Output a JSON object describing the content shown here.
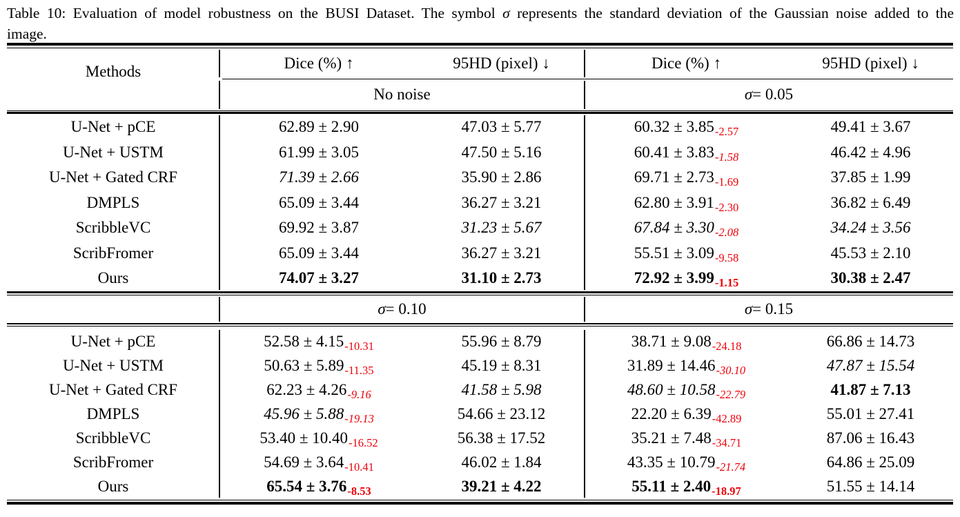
{
  "caption": {
    "part1": "Table 10: Evaluation of model robustness on the BUSI Dataset. The symbol ",
    "sigma": "σ",
    "part2": " represents the standard deviation of the Gaussian noise added to the",
    "line2": "image."
  },
  "colors": {
    "drop_red": "#ee0009",
    "text": "#000000",
    "background": "#ffffff"
  },
  "header": {
    "methods": "Methods",
    "dice": "Dice (%) ↑",
    "hd": "95HD (pixel) ↓"
  },
  "conditions": {
    "no_noise": "No noise",
    "s005": {
      "sigma": "σ",
      "rest": " = 0.05"
    },
    "s010": {
      "sigma": "σ",
      "rest": " = 0.10"
    },
    "s015": {
      "sigma": "σ",
      "rest": " = 0.15"
    }
  },
  "block1": {
    "rows": [
      {
        "method": "U-Net + pCE",
        "cells": [
          {
            "text": "62.89 ± 2.90"
          },
          {
            "text": "47.03 ± 5.77"
          },
          {
            "text": "60.32 ± 3.85",
            "sub": "-2.57"
          },
          {
            "text": "49.41 ± 3.67"
          }
        ]
      },
      {
        "method": "U-Net + USTM",
        "cells": [
          {
            "text": "61.99 ± 3.05"
          },
          {
            "text": "47.50 ± 5.16"
          },
          {
            "text": "60.41 ± 3.83",
            "sub": "-1.58",
            "sub_style": "italic"
          },
          {
            "text": "46.42 ± 4.96"
          }
        ]
      },
      {
        "method": "U-Net + Gated CRF",
        "cells": [
          {
            "text": "71.39 ± 2.66",
            "style": "italic"
          },
          {
            "text": "35.90 ± 2.86"
          },
          {
            "text": "69.71 ± 2.73",
            "sub": "-1.69"
          },
          {
            "text": "37.85 ± 1.99"
          }
        ]
      },
      {
        "method": "DMPLS",
        "cells": [
          {
            "text": "65.09 ± 3.44"
          },
          {
            "text": "36.27 ± 3.21"
          },
          {
            "text": "62.80 ± 3.91",
            "sub": "-2.30"
          },
          {
            "text": "36.82 ± 6.49"
          }
        ]
      },
      {
        "method": "ScribbleVC",
        "cells": [
          {
            "text": "69.92 ± 3.87"
          },
          {
            "text": "31.23 ± 5.67",
            "style": "italic"
          },
          {
            "text": "67.84 ± 3.30",
            "style": "italic",
            "sub": "-2.08"
          },
          {
            "text": "34.24 ± 3.56",
            "style": "italic"
          }
        ]
      },
      {
        "method": "ScribFromer",
        "cells": [
          {
            "text": "65.09 ± 3.44"
          },
          {
            "text": "36.27 ± 3.21"
          },
          {
            "text": "55.51 ± 3.09",
            "sub": "-9.58"
          },
          {
            "text": "45.53 ± 2.10"
          }
        ]
      },
      {
        "method": "Ours",
        "cells": [
          {
            "text": "74.07 ± 3.27",
            "style": "bold"
          },
          {
            "text": "31.10 ± 2.73",
            "style": "bold"
          },
          {
            "text": "72.92 ± 3.99",
            "style": "bold",
            "sub": "-1.15",
            "sub_style": "bold"
          },
          {
            "text": "30.38 ± 2.47",
            "style": "bold"
          }
        ]
      }
    ]
  },
  "block2": {
    "rows": [
      {
        "method": "U-Net + pCE",
        "cells": [
          {
            "text": "52.58 ± 4.15",
            "sub": "-10.31"
          },
          {
            "text": "55.96 ± 8.79"
          },
          {
            "text": "38.71 ± 9.08",
            "sub": "-24.18"
          },
          {
            "text": "66.86 ± 14.73"
          }
        ]
      },
      {
        "method": "U-Net + USTM",
        "cells": [
          {
            "text": "50.63 ± 5.89",
            "sub": "-11.35"
          },
          {
            "text": "45.19 ± 8.31"
          },
          {
            "text": "31.89 ± 14.46",
            "sub": "-30.10",
            "sub_style": "italic"
          },
          {
            "text": "47.87 ± 15.54",
            "style": "italic"
          }
        ]
      },
      {
        "method": "U-Net + Gated CRF",
        "cells": [
          {
            "text": "62.23 ± 4.26",
            "sub": "-9.16",
            "sub_style": "italic"
          },
          {
            "text": "41.58 ± 5.98",
            "style": "italic"
          },
          {
            "text": "48.60 ± 10.58",
            "style": "italic",
            "sub": "-22.79"
          },
          {
            "text": "41.87 ± 7.13",
            "style": "bold"
          }
        ]
      },
      {
        "method": "DMPLS",
        "cells": [
          {
            "text": "45.96 ± 5.88",
            "style": "italic",
            "sub": "-19.13"
          },
          {
            "text": "54.66 ± 23.12"
          },
          {
            "text": "22.20 ± 6.39",
            "sub": "-42.89"
          },
          {
            "text": "55.01 ± 27.41"
          }
        ]
      },
      {
        "method": "ScribbleVC",
        "cells": [
          {
            "text": "53.40 ± 10.40",
            "sub": "-16.52"
          },
          {
            "text": "56.38 ± 17.52"
          },
          {
            "text": "35.21 ± 7.48",
            "sub": "-34.71"
          },
          {
            "text": "87.06 ± 16.43"
          }
        ]
      },
      {
        "method": "ScribFromer",
        "cells": [
          {
            "text": "54.69 ± 3.64",
            "sub": "-10.41"
          },
          {
            "text": "46.02 ± 1.84"
          },
          {
            "text": "43.35 ± 10.79",
            "sub": "-21.74",
            "sub_style": "italic"
          },
          {
            "text": "64.86 ± 25.09"
          }
        ]
      },
      {
        "method": "Ours",
        "cells": [
          {
            "text": "65.54 ± 3.76",
            "style": "bold",
            "sub": "-8.53",
            "sub_style": "bold"
          },
          {
            "text": "39.21 ± 4.22",
            "style": "bold"
          },
          {
            "text": "55.11 ± 2.40",
            "style": "bold",
            "sub": "-18.97",
            "sub_style": "bold"
          },
          {
            "text": "51.55 ± 14.14"
          }
        ]
      }
    ]
  }
}
